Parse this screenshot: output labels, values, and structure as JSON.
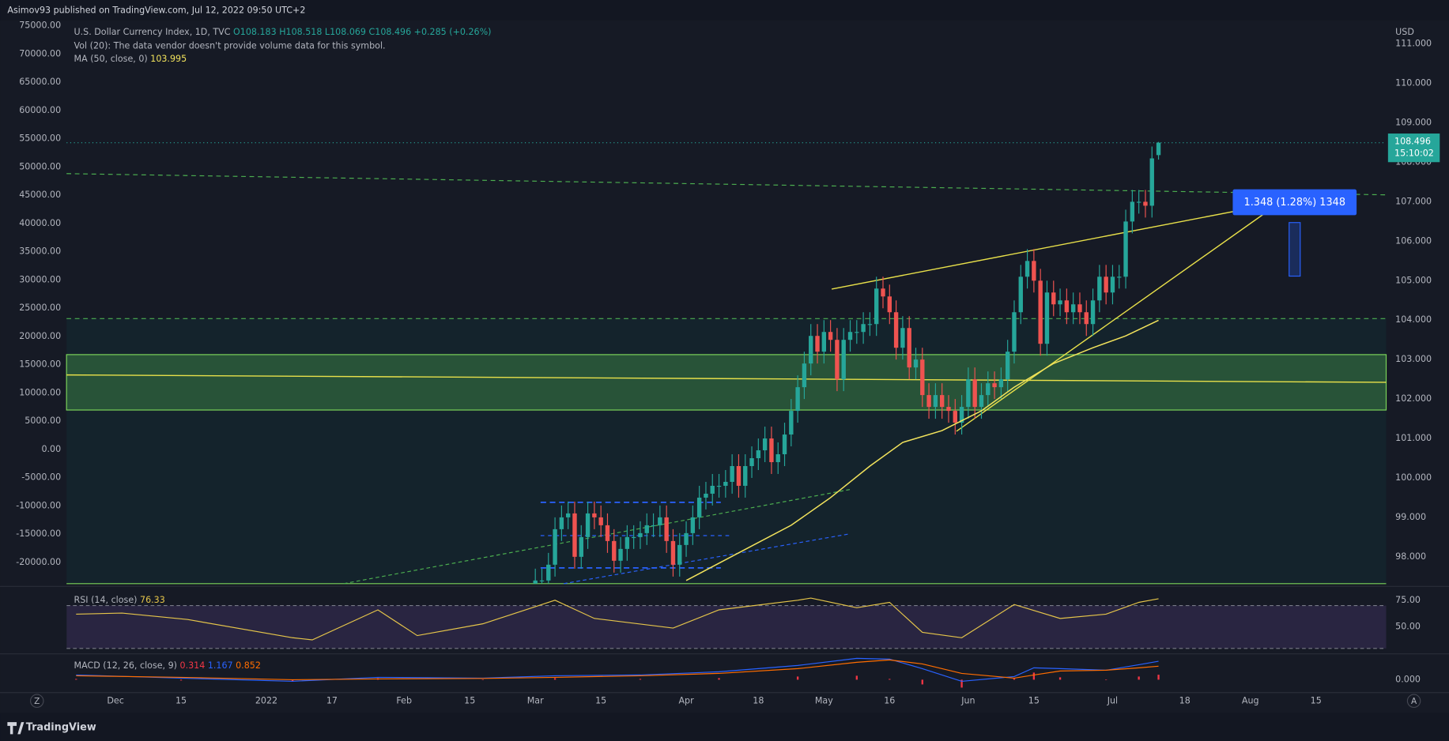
{
  "header": {
    "publisher": "Asimov93 published on TradingView.com, Jul 12, 2022 09:50 UTC+2",
    "brand": "TradingView"
  },
  "chart_data": [
    {
      "type": "candlestick",
      "title": "U.S. Dollar Currency Index, 1D, TVC",
      "ohlc_text": "O108.183 H108.518 L108.069 C108.496 +0.285 (+0.26%)",
      "volume_note": "Vol (20): The data vendor doesn't provide volume data for this symbol.",
      "currency": "USD",
      "countdown": "15:10:02",
      "annotation": "1.348 (1.28%) 1348",
      "up_color": "#26a69a",
      "down_color": "#ef5350",
      "x": [
        64,
        65,
        66,
        67,
        68,
        69,
        70,
        71,
        72,
        73,
        74,
        75,
        76,
        77,
        78,
        79,
        80,
        81,
        82,
        83,
        84,
        85,
        86,
        87,
        88,
        89,
        90,
        91,
        92,
        93,
        94,
        95,
        96,
        97,
        98,
        99,
        100,
        101,
        102,
        103,
        104,
        105,
        106,
        107,
        108,
        109,
        110,
        111,
        112,
        113,
        114,
        115,
        116,
        117,
        118,
        119,
        120,
        121,
        122,
        123,
        124,
        125,
        126,
        127,
        128,
        129,
        130,
        131,
        132,
        133,
        134,
        135,
        136,
        137,
        138,
        139,
        140,
        141,
        142,
        143,
        144,
        145,
        146,
        147,
        148,
        149,
        150,
        151,
        152,
        153,
        154,
        155,
        156,
        157,
        158,
        159
      ],
      "open": [
        97.1,
        97.4,
        97.4,
        97.8,
        98.7,
        99.0,
        99.1,
        98.0,
        98.5,
        99.1,
        99.0,
        98.8,
        98.4,
        97.9,
        98.2,
        98.5,
        98.5,
        98.6,
        98.8,
        98.8,
        99.0,
        98.4,
        97.8,
        98.3,
        98.6,
        99.0,
        99.5,
        99.6,
        99.8,
        99.8,
        99.9,
        100.3,
        99.8,
        100.3,
        100.5,
        100.7,
        101.0,
        100.4,
        100.6,
        101.1,
        101.7,
        102.3,
        102.9,
        103.6,
        103.2,
        103.7,
        103.5,
        102.5,
        103.5,
        103.7,
        103.7,
        103.9,
        103.9,
        104.8,
        104.6,
        104.2,
        103.3,
        103.8,
        102.8,
        103.0,
        102.1,
        101.8,
        102.1,
        101.8,
        101.7,
        101.4,
        101.8,
        102.5,
        101.8,
        102.1,
        102.4,
        102.3,
        102.5,
        103.2,
        104.2,
        105.1,
        105.5,
        105.0,
        103.4,
        104.7,
        104.4,
        104.5,
        104.2,
        104.4,
        104.2,
        103.9,
        104.5,
        105.1,
        104.7,
        105.1,
        105.1,
        106.5,
        107.0,
        107.0,
        106.9,
        108.183
      ],
      "high": [
        97.7,
        97.7,
        98.1,
        99.0,
        99.3,
        99.4,
        99.4,
        98.8,
        99.4,
        99.4,
        99.3,
        99.1,
        98.7,
        98.5,
        98.8,
        98.8,
        98.9,
        99.1,
        99.1,
        99.3,
        99.3,
        98.7,
        98.6,
        98.9,
        99.3,
        99.8,
        99.9,
        100.1,
        100.1,
        100.2,
        100.6,
        100.6,
        100.6,
        100.8,
        101.0,
        101.3,
        101.3,
        100.9,
        101.4,
        102.0,
        102.6,
        103.2,
        103.9,
        103.9,
        104.0,
        104.0,
        103.8,
        103.8,
        104.0,
        104.0,
        104.2,
        104.2,
        105.1,
        105.1,
        104.9,
        104.5,
        104.1,
        104.1,
        103.3,
        103.3,
        102.4,
        102.4,
        102.4,
        102.1,
        102.0,
        102.1,
        102.8,
        102.8,
        102.4,
        102.7,
        102.7,
        102.8,
        103.5,
        104.5,
        105.4,
        105.8,
        105.8,
        105.3,
        105.0,
        105.0,
        104.8,
        104.8,
        104.7,
        104.7,
        104.5,
        104.8,
        105.4,
        105.4,
        105.4,
        105.4,
        106.8,
        107.3,
        107.3,
        107.3,
        108.4,
        108.518
      ],
      "low": [
        96.8,
        97.1,
        97.1,
        97.5,
        98.4,
        98.7,
        97.7,
        97.7,
        98.2,
        98.7,
        98.5,
        98.1,
        97.6,
        97.6,
        97.9,
        98.2,
        98.2,
        98.3,
        98.5,
        98.5,
        98.1,
        97.5,
        97.5,
        98.0,
        98.3,
        98.7,
        99.2,
        99.3,
        99.5,
        99.5,
        99.6,
        99.5,
        99.5,
        100.0,
        100.2,
        100.4,
        100.1,
        100.1,
        100.3,
        100.8,
        101.4,
        102.0,
        102.6,
        102.9,
        102.9,
        103.2,
        102.2,
        102.2,
        103.2,
        103.4,
        103.4,
        103.6,
        103.6,
        104.3,
        103.9,
        103.0,
        103.0,
        102.5,
        102.5,
        101.8,
        101.5,
        101.5,
        101.5,
        101.4,
        101.1,
        101.1,
        101.5,
        101.5,
        101.5,
        101.8,
        102.0,
        102.0,
        102.2,
        102.9,
        103.9,
        104.8,
        104.7,
        103.1,
        103.1,
        104.1,
        104.1,
        103.9,
        103.9,
        103.9,
        103.6,
        103.6,
        104.2,
        104.4,
        104.4,
        104.8,
        104.8,
        106.2,
        106.7,
        106.6,
        106.6,
        108.069
      ],
      "close": [
        97.4,
        97.4,
        97.8,
        98.7,
        99.0,
        99.1,
        98.0,
        98.5,
        99.1,
        99.0,
        98.8,
        98.4,
        97.9,
        98.2,
        98.5,
        98.5,
        98.6,
        98.8,
        98.8,
        99.0,
        98.4,
        97.8,
        98.3,
        98.6,
        99.0,
        99.5,
        99.6,
        99.8,
        99.8,
        99.9,
        100.3,
        99.8,
        100.3,
        100.5,
        100.7,
        101.0,
        100.4,
        100.6,
        101.1,
        101.7,
        102.3,
        102.9,
        103.6,
        103.2,
        103.7,
        103.5,
        102.5,
        103.5,
        103.7,
        103.7,
        103.9,
        103.9,
        104.8,
        104.6,
        104.2,
        103.3,
        103.8,
        102.8,
        103.0,
        102.1,
        101.8,
        102.1,
        101.8,
        101.7,
        101.4,
        101.8,
        102.5,
        101.8,
        102.1,
        102.4,
        102.3,
        102.5,
        103.2,
        104.2,
        105.1,
        105.5,
        105.0,
        103.4,
        104.7,
        104.4,
        104.5,
        104.2,
        104.4,
        104.2,
        103.9,
        104.5,
        105.1,
        104.7,
        105.1,
        105.1,
        106.5,
        107.0,
        107.0,
        106.9,
        108.1,
        108.496
      ],
      "series": [
        {
          "name": "MA (50, close, 0)",
          "color": "#f2e35c",
          "x": [
            87,
            95,
            103,
            109,
            115,
            120,
            126,
            132,
            137,
            143,
            149,
            154,
            159
          ],
          "values": [
            97.4,
            98.1,
            98.8,
            99.5,
            100.3,
            100.9,
            101.2,
            101.7,
            102.3,
            102.9,
            103.3,
            103.6,
            103.995
          ]
        }
      ],
      "xlim": [
        -7.46,
        193.7
      ],
      "xticks": [
        {
          "value": 0,
          "label": "Dec"
        },
        {
          "value": 10,
          "label": "15"
        },
        {
          "value": 23,
          "label": "2022"
        },
        {
          "value": 33,
          "label": "17"
        },
        {
          "value": 44,
          "label": "Feb"
        },
        {
          "value": 54,
          "label": "15"
        },
        {
          "value": 64,
          "label": "Mar"
        },
        {
          "value": 74,
          "label": "15"
        },
        {
          "value": 87,
          "label": "Apr"
        },
        {
          "value": 98,
          "label": "18"
        },
        {
          "value": 108,
          "label": "May"
        },
        {
          "value": 118,
          "label": "16"
        },
        {
          "value": 130,
          "label": "Jun"
        },
        {
          "value": 140,
          "label": "15"
        },
        {
          "value": 152,
          "label": "Jul"
        },
        {
          "value": 163,
          "label": "18"
        },
        {
          "value": 173,
          "label": "Aug"
        },
        {
          "value": 183,
          "label": "15"
        }
      ],
      "ylim": [
        97.32,
        111.6
      ],
      "yticks": [
        {
          "value": 98,
          "label": "98.000"
        },
        {
          "value": 99,
          "label": "99.000"
        },
        {
          "value": 100,
          "label": "100.000"
        },
        {
          "value": 101,
          "label": "101.000"
        },
        {
          "value": 102,
          "label": "102.000"
        },
        {
          "value": 103,
          "label": "103.000"
        },
        {
          "value": 104,
          "label": "104.000"
        },
        {
          "value": 105,
          "label": "105.000"
        },
        {
          "value": 106,
          "label": "106.000"
        },
        {
          "value": 107,
          "label": "107.000"
        },
        {
          "value": 108,
          "label": "108.000"
        },
        {
          "value": 109,
          "label": "109.000"
        },
        {
          "value": 110,
          "label": "110.000"
        },
        {
          "value": 111,
          "label": "111.000"
        }
      ],
      "y2lim": [
        -23760,
        75980
      ],
      "y2ticks": [
        {
          "value": 75000,
          "label": "75000.00"
        },
        {
          "value": 70000,
          "label": "70000.00"
        },
        {
          "value": 65000,
          "label": "65000.00"
        },
        {
          "value": 60000,
          "label": "60000.00"
        },
        {
          "value": 55000,
          "label": "55000.00"
        },
        {
          "value": 50000,
          "label": "50000.00"
        },
        {
          "value": 45000,
          "label": "45000.00"
        },
        {
          "value": 40000,
          "label": "40000.00"
        },
        {
          "value": 35000,
          "label": "35000.00"
        },
        {
          "value": 30000,
          "label": "30000.00"
        },
        {
          "value": 25000,
          "label": "25000.00"
        },
        {
          "value": 20000,
          "label": "20000.00"
        },
        {
          "value": 15000,
          "label": "15000.00"
        },
        {
          "value": 10000,
          "label": "10000.00"
        },
        {
          "value": 5000,
          "label": "5000.00"
        },
        {
          "value": 0,
          "label": "0.00"
        },
        {
          "value": -5000,
          "label": "-5000.00"
        },
        {
          "value": -10000,
          "label": "-10000.00"
        },
        {
          "value": -15000,
          "label": "-15000.00"
        },
        {
          "value": -20000,
          "label": "-20000.00"
        }
      ],
      "grid": false
    },
    {
      "type": "line",
      "series": [
        {
          "name": "RSI (14, close)",
          "color": "#e5c54a",
          "x": [
            -6,
            1,
            11,
            27,
            30,
            40,
            46,
            56,
            67,
            73,
            85,
            92,
            104,
            106,
            113,
            118,
            123,
            129,
            137,
            144,
            151,
            156,
            159
          ],
          "values": [
            62,
            63,
            57,
            40,
            38,
            66,
            42,
            53,
            75,
            58,
            49,
            66,
            75,
            77,
            68,
            73,
            45,
            40,
            71,
            58,
            62,
            73,
            76.33
          ]
        }
      ],
      "band": [
        30,
        70
      ],
      "band_color": "#7e57c2",
      "ylim": [
        26.7,
        85.3
      ],
      "yticks": [
        {
          "value": 50,
          "label": "50.00"
        },
        {
          "value": 75,
          "label": "75.00"
        }
      ]
    },
    {
      "type": "macd",
      "title": "MACD (12, 26, close, 9)",
      "x": [
        -6,
        10,
        27,
        40,
        56,
        67,
        80,
        92,
        104,
        113,
        118,
        123,
        129,
        137,
        140,
        144,
        151,
        156,
        159
      ],
      "histogram": {
        "color": "#f23645",
        "values": [
          0.05,
          -0.05,
          -0.1,
          0.1,
          0.02,
          0.1,
          0.05,
          0.1,
          0.2,
          0.25,
          0.05,
          -0.3,
          -0.5,
          0.1,
          0.45,
          0.15,
          0,
          0.2,
          0.314
        ]
      },
      "series": [
        {
          "color": "#2962ff",
          "values": [
            0.3,
            0.1,
            -0.1,
            0.15,
            0.1,
            0.25,
            0.3,
            0.5,
            0.9,
            1.35,
            1.3,
            0.7,
            -0.1,
            0.2,
            0.75,
            0.7,
            0.6,
            0.95,
            1.167
          ]
        },
        {
          "color": "#ff6d00",
          "values": [
            0.25,
            0.15,
            0,
            0.05,
            0.08,
            0.15,
            0.25,
            0.4,
            0.7,
            1.1,
            1.25,
            1.0,
            0.4,
            0.1,
            0.3,
            0.55,
            0.6,
            0.75,
            0.852
          ]
        }
      ],
      "ylim": [
        -0.7,
        1.52
      ],
      "yticks": [
        {
          "value": 0,
          "label": "0.000"
        }
      ]
    }
  ]
}
